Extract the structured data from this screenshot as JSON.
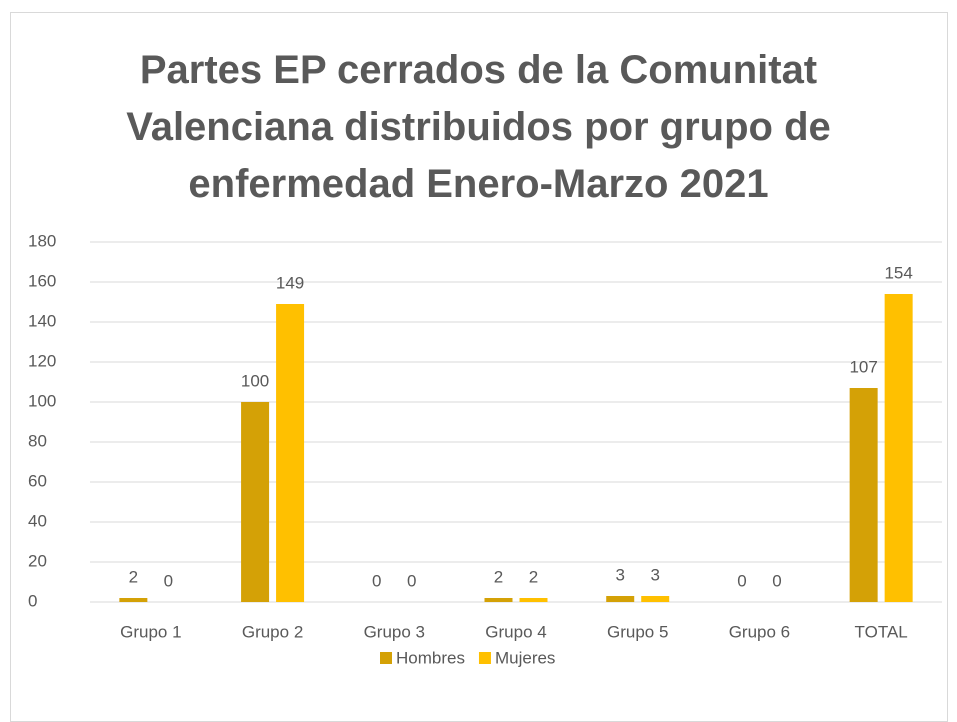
{
  "chart_data": {
    "type": "bar",
    "title": "Partes EP cerrados de la Comunitat Valenciana distribuidos por grupo de enfermedad Enero-Marzo 2021",
    "categories": [
      "Grupo 1",
      "Grupo 2",
      "Grupo 3",
      "Grupo 4",
      "Grupo 5",
      "Grupo 6",
      "TOTAL"
    ],
    "series": [
      {
        "name": "Hombres",
        "color": "#D4A106",
        "values": [
          2,
          100,
          0,
          2,
          3,
          0,
          107
        ]
      },
      {
        "name": "Mujeres",
        "color": "#FFC000",
        "values": [
          0,
          149,
          0,
          2,
          3,
          0,
          154
        ]
      }
    ],
    "ylim": [
      0,
      180
    ],
    "yticks": [
      0,
      20,
      40,
      60,
      80,
      100,
      120,
      140,
      160,
      180
    ],
    "grid": true,
    "legend": "bottom"
  }
}
